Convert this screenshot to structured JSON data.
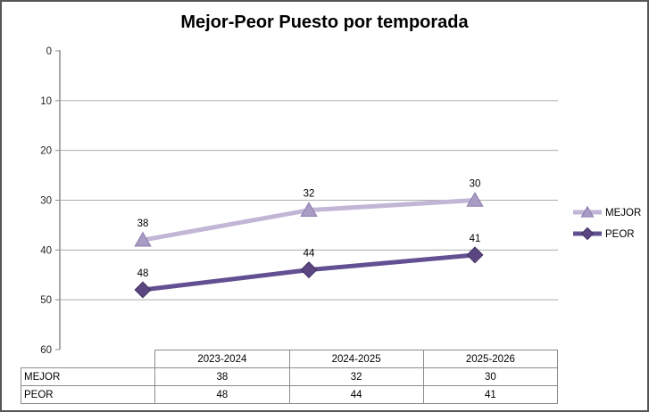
{
  "title": "Mejor-Peor Puesto por temporada",
  "chart_data": {
    "type": "line",
    "title": "Mejor-Peor Puesto por temporada",
    "categories": [
      "2023-2024",
      "2024-2025",
      "2025-2026"
    ],
    "series": [
      {
        "name": "MEJOR",
        "values": [
          38,
          32,
          30
        ],
        "marker": "triangle",
        "line_color": "#c2b6d7",
        "marker_fill": "#a89bc4",
        "marker_edge": "#8c7cac"
      },
      {
        "name": "PEOR",
        "values": [
          48,
          44,
          41
        ],
        "marker": "diamond",
        "line_color": "#635092",
        "marker_fill": "#5b4682",
        "marker_edge": "#42315f"
      }
    ],
    "xlabel": "",
    "ylabel": "",
    "ylim": [
      0,
      60
    ],
    "y_inverted": true,
    "yticks": [
      0,
      10,
      20,
      30,
      40,
      50,
      60
    ],
    "grid": true,
    "legend_position": "right",
    "data_labels": true
  },
  "table": {
    "columns": [
      "2023-2024",
      "2024-2025",
      "2025-2026"
    ],
    "rows": [
      {
        "label": "MEJOR",
        "values": [
          "38",
          "32",
          "30"
        ]
      },
      {
        "label": "PEOR",
        "values": [
          "48",
          "44",
          "41"
        ]
      }
    ]
  },
  "colors": {
    "grid_line": "#acacac",
    "axis_line": "#8c8c8c",
    "tick_text": "#262626",
    "label_text": "#000000",
    "table_border": "#8c8c8c",
    "frame_border": "#565656"
  }
}
